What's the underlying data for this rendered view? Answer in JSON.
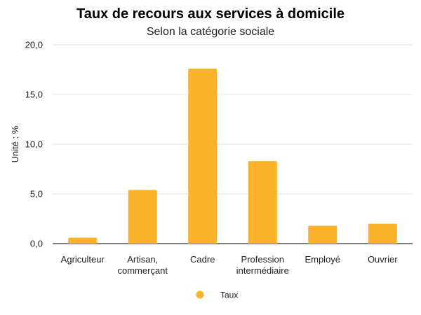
{
  "chart_data": {
    "type": "bar",
    "title": "Taux de recours aux services à domicile",
    "subtitle": "Selon la catégorie sociale",
    "ylabel": "Unité : %",
    "xlabel": "",
    "ylim": [
      0,
      20
    ],
    "yticks": [
      "0,0",
      "5,0",
      "10,0",
      "15,0",
      "20,0"
    ],
    "ytick_values": [
      0,
      5,
      10,
      15,
      20
    ],
    "grid": true,
    "legend_position": "bottom",
    "categories": [
      [
        "Agriculteur"
      ],
      [
        "Artisan,",
        "commerçant"
      ],
      [
        "Cadre"
      ],
      [
        "Profession",
        "intermédiaire"
      ],
      [
        "Employé"
      ],
      [
        "Ouvrier"
      ]
    ],
    "series": [
      {
        "name": "Taux",
        "color": "#F9B22A",
        "values": [
          0.6,
          5.4,
          17.6,
          8.3,
          1.8,
          2.0
        ]
      }
    ]
  }
}
